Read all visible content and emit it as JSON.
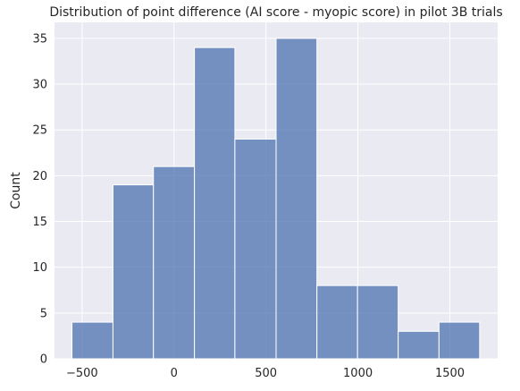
{
  "chart_data": {
    "type": "bar",
    "title": "Distribution of point difference (AI score - myopic score) in pilot 3B trials",
    "xlabel": "",
    "ylabel": "Count",
    "bin_edges": [
      -555,
      -332,
      -112,
      111,
      331,
      555,
      777,
      998,
      1219,
      1441,
      1662
    ],
    "values": [
      4,
      19,
      21,
      34,
      24,
      35,
      8,
      8,
      3,
      4
    ],
    "xlim": [
      -650,
      1760
    ],
    "ylim": [
      0,
      36.75
    ],
    "xticks": [
      -500,
      0,
      500,
      1000,
      1500
    ],
    "xtick_labels": [
      "−500",
      "0",
      "500",
      "1000",
      "1500"
    ],
    "yticks": [
      0,
      5,
      10,
      15,
      20,
      25,
      30,
      35
    ],
    "ytick_labels": [
      "0",
      "5",
      "10",
      "15",
      "20",
      "25",
      "30",
      "35"
    ],
    "grid": true,
    "colors": {
      "bar": "#4c72b0",
      "background": "#eaeaf2",
      "grid": "#ffffff"
    }
  }
}
